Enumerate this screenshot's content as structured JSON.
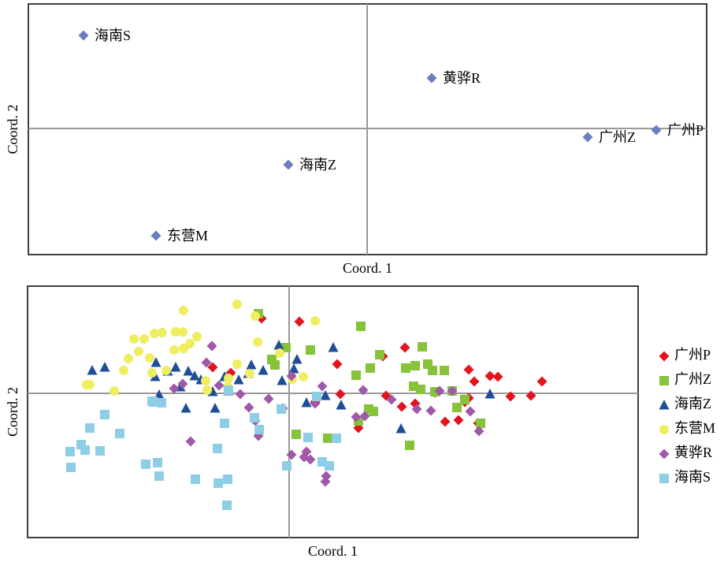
{
  "chart_data": [
    {
      "type": "scatter",
      "x_label": "Coord. 1",
      "y_label": "Coord. 2",
      "color": "#6a7fbf",
      "marker": "diamond",
      "xlim": [
        -430,
        431
      ],
      "ylim": [
        -160,
        158
      ],
      "labels": [
        "海南S",
        "黄骅R",
        "广州Z",
        "广州P",
        "海南Z",
        "东营M"
      ],
      "x": [
        -360,
        82,
        280,
        367,
        -100,
        -268
      ],
      "values": [
        118,
        64,
        -11,
        -2,
        -46,
        -136
      ]
    },
    {
      "type": "scatter",
      "x_label": "Coord. 1",
      "y_label": "Coord. 2",
      "legend": "right",
      "xlim": [
        -332,
        443
      ],
      "ylim": [
        -183,
        136
      ],
      "series": [
        {
          "name": "广州P",
          "color": "#e3141e",
          "marker": "diamond",
          "x": [
            -35,
            13,
            -97,
            -74,
            61,
            147,
            119,
            158,
            228,
            255,
            265,
            235,
            321,
            123,
            65,
            185,
            281,
            307,
            143,
            160,
            88,
            33,
            198,
            215,
            223,
            240,
            228
          ],
          "values": [
            95,
            91,
            33,
            26,
            37,
            58,
            47,
            35,
            30,
            22,
            21,
            15,
            15,
            -3,
            -1,
            1,
            -4,
            -3,
            -17,
            -13,
            -44,
            -11,
            -36,
            -34,
            -11,
            -38,
            -6
          ]
        },
        {
          "name": "广州Z",
          "color": "#86c23a",
          "marker": "square",
          "x": [
            -39,
            91,
            169,
            115,
            27,
            -4,
            -22,
            -18,
            85,
            103,
            148,
            160,
            176,
            182,
            197,
            158,
            167,
            185,
            207,
            223,
            213,
            243,
            101,
            107,
            88,
            9,
            24,
            49,
            153
          ],
          "values": [
            101,
            85,
            59,
            49,
            55,
            58,
            43,
            36,
            23,
            32,
            32,
            35,
            37,
            29,
            29,
            9,
            5,
            2,
            3,
            -8,
            -18,
            -38,
            -20,
            -23,
            -35,
            -52,
            -56,
            -57,
            -66
          ]
        },
        {
          "name": "海南Z",
          "color": "#1f4e99",
          "marker": "triangle",
          "x": [
            -250,
            -234,
            -169,
            -170,
            -154,
            -144,
            -128,
            -120,
            -138,
            -165,
            -131,
            -94,
            -112,
            -82,
            -64,
            -52,
            -48,
            -33,
            -13,
            -9,
            10,
            6,
            56,
            22,
            46,
            66,
            142,
            255,
            -77,
            -97
          ],
          "values": [
            29,
            33,
            39,
            21,
            28,
            33,
            28,
            22,
            8,
            -2,
            -19,
            -19,
            17,
            21,
            17,
            25,
            36,
            29,
            61,
            16,
            43,
            31,
            58,
            -12,
            -3,
            -15,
            -45,
            -1,
            3,
            2
          ]
        },
        {
          "name": "东营M",
          "color": "#eeee60",
          "marker": "circle",
          "x": [
            -134,
            -66,
            -43,
            33,
            -197,
            -184,
            -171,
            -161,
            -144,
            -135,
            -117,
            -126,
            -134,
            -146,
            -191,
            -204,
            -177,
            -156,
            -174,
            -210,
            -257,
            -253,
            -222,
            -106,
            -104,
            -77,
            -66,
            -50,
            -40,
            -12,
            4,
            18,
            -78
          ],
          "values": [
            105,
            113,
            98,
            92,
            69,
            69,
            76,
            77,
            78,
            78,
            72,
            63,
            57,
            55,
            53,
            44,
            45,
            29,
            26,
            29,
            11,
            11,
            3,
            16,
            4,
            19,
            37,
            25,
            65,
            51,
            18,
            21,
            8
          ]
        },
        {
          "name": "黄骅R",
          "color": "#a058a8",
          "marker": "diamond",
          "x": [
            -98,
            -135,
            -89,
            -51,
            -43,
            -26,
            -8,
            3,
            42,
            94,
            130,
            162,
            180,
            191,
            207,
            230,
            241,
            85,
            96,
            22,
            27,
            19,
            3,
            47,
            46,
            -125,
            -39,
            33,
            -105,
            -146,
            -62
          ],
          "values": [
            60,
            12,
            10,
            -18,
            -35,
            -7,
            -19,
            22,
            9,
            4,
            -8,
            -20,
            -22,
            3,
            3,
            -23,
            -48,
            -30,
            -29,
            -74,
            -84,
            -81,
            -78,
            -105,
            -112,
            -61,
            -54,
            -13,
            39,
            6,
            -1
          ]
        },
        {
          "name": "海南S",
          "color": "#8ecde6",
          "marker": "square",
          "x": [
            -278,
            -277,
            -264,
            -259,
            -240,
            -253,
            -234,
            -215,
            -172,
            -162,
            -174,
            -182,
            -167,
            -165,
            -119,
            -91,
            -82,
            -90,
            -78,
            -79,
            -44,
            -38,
            -10,
            -3,
            35,
            24,
            60,
            42,
            51,
            -77
          ],
          "values": [
            -74,
            -94,
            -65,
            -72,
            -73,
            -44,
            -27,
            -51,
            -11,
            -12,
            -10,
            -90,
            -88,
            -105,
            -109,
            -70,
            -38,
            -114,
            -109,
            -142,
            -31,
            -46,
            -20,
            -92,
            -4,
            -56,
            -57,
            -87,
            -92,
            4
          ]
        }
      ]
    }
  ]
}
